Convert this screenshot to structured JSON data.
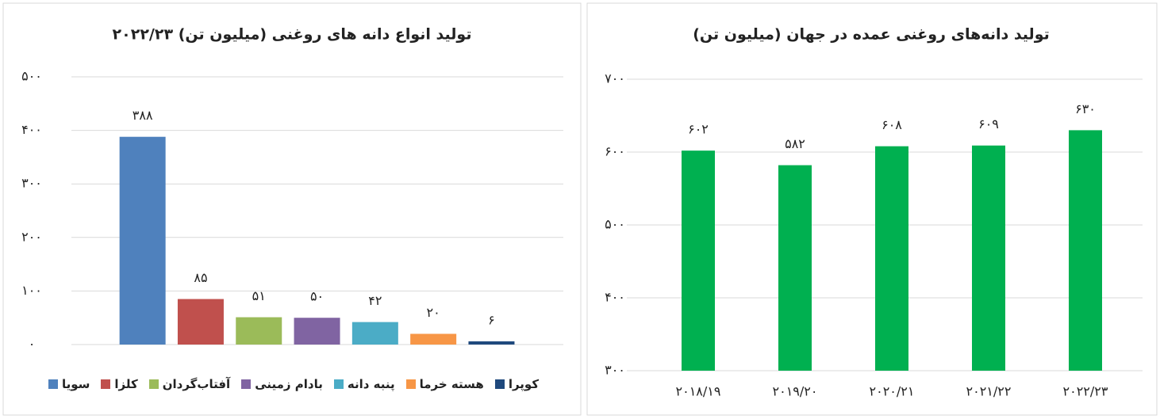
{
  "chart_data": [
    {
      "type": "bar",
      "title": "تولید انواع دانه های روغنی (میلیون تن) ۲۰۲۲/۲۳",
      "categories": [
        "سویا",
        "کلزا",
        "آفتاب‌گردان",
        "بادام زمینی",
        "پنبه دانه",
        "هسته خرما",
        "کوپرا"
      ],
      "values": [
        388,
        85,
        51,
        50,
        42,
        20,
        6
      ],
      "value_labels": [
        "۳۸۸",
        "۸۵",
        "۵۱",
        "۵۰",
        "۴۲",
        "۲۰",
        "۶"
      ],
      "colors": [
        "#4f81bd",
        "#c0504d",
        "#9bbb59",
        "#8064a2",
        "#4bacc6",
        "#f79646",
        "#1f497d"
      ],
      "ylim": [
        0,
        500
      ],
      "yticks": [
        {
          "value": 0,
          "label": "۰"
        },
        {
          "value": 100,
          "label": "۱۰۰"
        },
        {
          "value": 200,
          "label": "۲۰۰"
        },
        {
          "value": 300,
          "label": "۳۰۰"
        },
        {
          "value": 400,
          "label": "۴۰۰"
        },
        {
          "value": 500,
          "label": "۵۰۰"
        }
      ],
      "grid": true,
      "legend": "bottom"
    },
    {
      "type": "bar",
      "title": "تولید دانه‌های روغنی عمده در جهان (میلیون تن)",
      "categories": [
        "۲۰۱۸/۱۹",
        "۲۰۱۹/۲۰",
        "۲۰۲۰/۲۱",
        "۲۰۲۱/۲۲",
        "۲۰۲۲/۲۳"
      ],
      "values": [
        602,
        582,
        608,
        609,
        630
      ],
      "value_labels": [
        "۶۰۲",
        "۵۸۲",
        "۶۰۸",
        "۶۰۹",
        "۶۳۰"
      ],
      "color": "#00b050",
      "ylim": [
        300,
        700
      ],
      "yticks": [
        {
          "value": 300,
          "label": "۳۰۰"
        },
        {
          "value": 400,
          "label": "۴۰۰"
        },
        {
          "value": 500,
          "label": "۵۰۰"
        },
        {
          "value": 600,
          "label": "۶۰۰"
        },
        {
          "value": 700,
          "label": "۷۰۰"
        }
      ],
      "grid": true
    }
  ]
}
